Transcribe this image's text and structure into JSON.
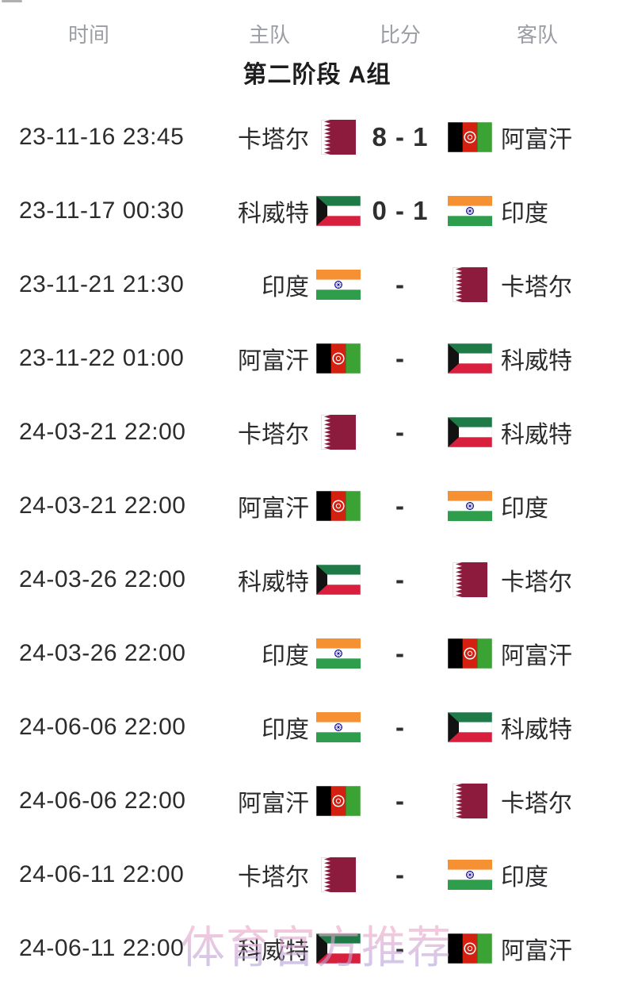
{
  "header": {
    "columns": [
      "时间",
      "主队",
      "比分",
      "客队"
    ]
  },
  "group_title": "第二阶段 A组",
  "watermark": "体育官方推荐",
  "matches": [
    {
      "time": "23-11-16 23:45",
      "home": {
        "name": "卡塔尔",
        "flag": "qa"
      },
      "score": "8 - 1",
      "away": {
        "name": "阿富汗",
        "flag": "af"
      }
    },
    {
      "time": "23-11-17 00:30",
      "home": {
        "name": "科威特",
        "flag": "kw"
      },
      "score": "0 - 1",
      "away": {
        "name": "印度",
        "flag": "in"
      }
    },
    {
      "time": "23-11-21 21:30",
      "home": {
        "name": "印度",
        "flag": "in"
      },
      "score": "-",
      "away": {
        "name": "卡塔尔",
        "flag": "qa"
      }
    },
    {
      "time": "23-11-22 01:00",
      "home": {
        "name": "阿富汗",
        "flag": "af"
      },
      "score": "-",
      "away": {
        "name": "科威特",
        "flag": "kw"
      }
    },
    {
      "time": "24-03-21 22:00",
      "home": {
        "name": "卡塔尔",
        "flag": "qa"
      },
      "score": "-",
      "away": {
        "name": "科威特",
        "flag": "kw"
      }
    },
    {
      "time": "24-03-21 22:00",
      "home": {
        "name": "阿富汗",
        "flag": "af"
      },
      "score": "-",
      "away": {
        "name": "印度",
        "flag": "in"
      }
    },
    {
      "time": "24-03-26 22:00",
      "home": {
        "name": "科威特",
        "flag": "kw"
      },
      "score": "-",
      "away": {
        "name": "卡塔尔",
        "flag": "qa"
      }
    },
    {
      "time": "24-03-26 22:00",
      "home": {
        "name": "印度",
        "flag": "in"
      },
      "score": "-",
      "away": {
        "name": "阿富汗",
        "flag": "af"
      }
    },
    {
      "time": "24-06-06 22:00",
      "home": {
        "name": "印度",
        "flag": "in"
      },
      "score": "-",
      "away": {
        "name": "科威特",
        "flag": "kw"
      }
    },
    {
      "time": "24-06-06 22:00",
      "home": {
        "name": "阿富汗",
        "flag": "af"
      },
      "score": "-",
      "away": {
        "name": "卡塔尔",
        "flag": "qa"
      }
    },
    {
      "time": "24-06-11 22:00",
      "home": {
        "name": "卡塔尔",
        "flag": "qa"
      },
      "score": "-",
      "away": {
        "name": "印度",
        "flag": "in"
      }
    },
    {
      "time": "24-06-11 22:00",
      "home": {
        "name": "科威特",
        "flag": "kw"
      },
      "score": "-",
      "away": {
        "name": "阿富汗",
        "flag": "af"
      }
    }
  ],
  "flags": {
    "qa": {
      "country": "卡塔尔",
      "colors": [
        "#8d1b3d",
        "#ffffff"
      ]
    },
    "af": {
      "country": "阿富汗",
      "colors": [
        "#000000",
        "#d32011",
        "#3aa333",
        "#ffffff"
      ]
    },
    "kw": {
      "country": "科威特",
      "colors": [
        "#1e7b48",
        "#ffffff",
        "#d81f3d",
        "#000000"
      ]
    },
    "in": {
      "country": "印度",
      "colors": [
        "#f59033",
        "#ffffff",
        "#2f9e4c",
        "#06038d"
      ]
    }
  },
  "colors": {
    "header_text": "#9a9da3",
    "body_text": "#2c2c2e",
    "title_text": "#1d1d1f",
    "watermark_pink": "#f3a9c6",
    "watermark_purple": "#aaa2e0"
  }
}
